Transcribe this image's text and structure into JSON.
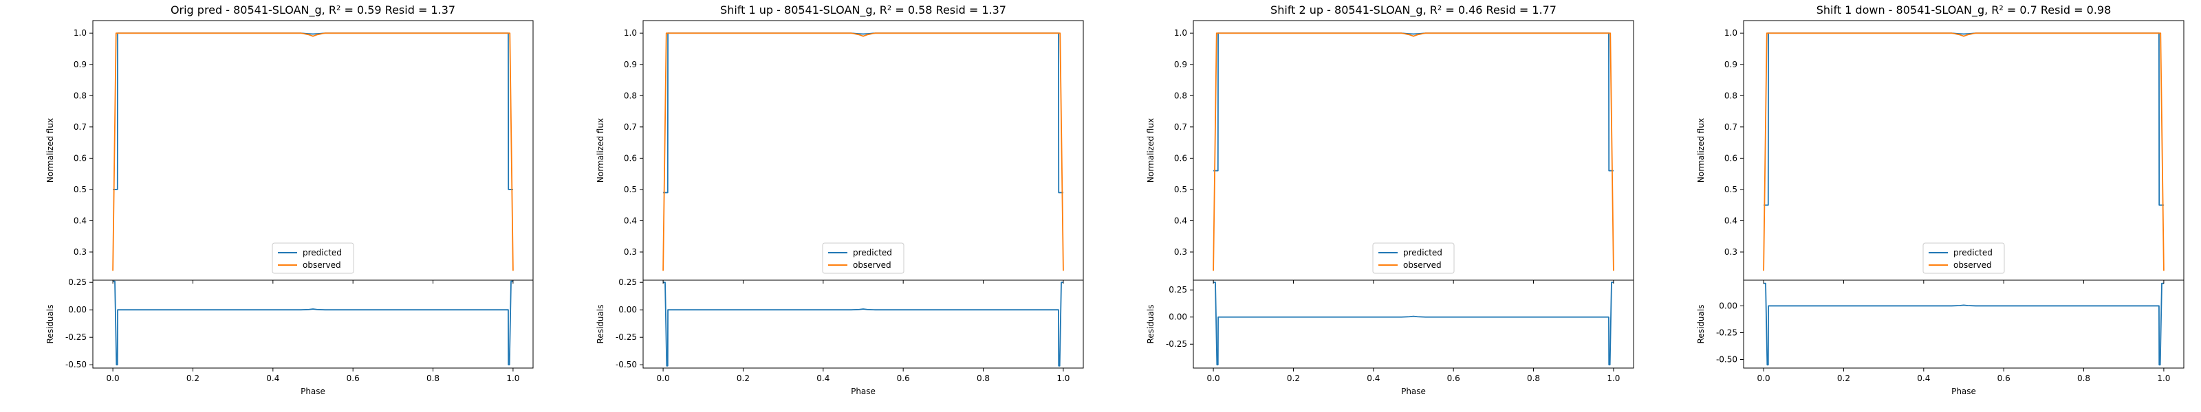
{
  "chart_data": [
    {
      "type": "line",
      "title": "Orig pred - 80541-SLOAN_g, R² = 0.59 Resid = 1.37",
      "top": {
        "ylabel": "Normalized flux",
        "ylim": [
          0.21,
          1.04
        ],
        "yticks": [
          0.3,
          0.4,
          0.5,
          0.6,
          0.7,
          0.8,
          0.9,
          1.0
        ],
        "legend": {
          "placement": "lower center",
          "entries": [
            "predicted",
            "observed"
          ]
        },
        "series": [
          {
            "name": "predicted",
            "color": "#1f77b4",
            "x": [
              0.0,
              0.0005,
              0.005,
              0.0115,
              0.012,
              0.02,
              0.47,
              0.49,
              0.5,
              0.51,
              0.53,
              0.98,
              0.988,
              0.9885,
              0.995,
              0.9995,
              1.0
            ],
            "y": [
              0.5,
              0.5,
              0.5,
              0.5,
              1.0,
              1.0,
              1.0,
              0.998,
              0.997,
              0.998,
              1.0,
              1.0,
              1.0,
              0.5,
              0.5,
              0.5,
              0.5
            ]
          },
          {
            "name": "observed",
            "color": "#ff7f0e",
            "x": [
              0.0,
              0.008,
              0.02,
              0.47,
              0.49,
              0.5,
              0.51,
              0.53,
              0.98,
              0.992,
              1.0
            ],
            "y": [
              0.24,
              1.0,
              1.0,
              1.0,
              0.995,
              0.99,
              0.995,
              1.0,
              1.0,
              1.0,
              0.24
            ]
          }
        ]
      },
      "bottom": {
        "ylabel": "Residuals",
        "ylim": [
          -0.53,
          0.27
        ],
        "yticks": [
          -0.5,
          -0.25,
          0.0,
          0.25
        ],
        "series": [
          {
            "name": "residuals",
            "color": "#1f77b4",
            "x": [
              0.0,
              0.005,
              0.009,
              0.0115,
              0.012,
              0.02,
              0.47,
              0.49,
              0.5,
              0.51,
              0.53,
              0.98,
              0.988,
              0.9885,
              0.991,
              0.995,
              1.0
            ],
            "y": [
              0.26,
              0.26,
              -0.5,
              -0.5,
              0.0,
              0.0,
              0.0,
              0.003,
              0.007,
              0.003,
              0.0,
              0.0,
              0.0,
              -0.5,
              -0.5,
              0.26,
              0.26
            ]
          }
        ]
      },
      "xlabel": "Phase",
      "xlim": [
        -0.05,
        1.05
      ],
      "xticks": [
        0.0,
        0.2,
        0.4,
        0.6,
        0.8,
        1.0
      ]
    },
    {
      "type": "line",
      "title": "Shift 1 up - 80541-SLOAN_g, R² = 0.58 Resid = 1.37",
      "top": {
        "ylabel": "Normalized flux",
        "ylim": [
          0.21,
          1.04
        ],
        "yticks": [
          0.3,
          0.4,
          0.5,
          0.6,
          0.7,
          0.8,
          0.9,
          1.0
        ],
        "legend": {
          "placement": "lower center",
          "entries": [
            "predicted",
            "observed"
          ]
        },
        "series": [
          {
            "name": "predicted",
            "color": "#1f77b4",
            "x": [
              0.0,
              0.0005,
              0.005,
              0.0115,
              0.012,
              0.02,
              0.47,
              0.49,
              0.5,
              0.51,
              0.53,
              0.98,
              0.988,
              0.9885,
              0.995,
              0.9995,
              1.0
            ],
            "y": [
              0.49,
              0.49,
              0.49,
              0.49,
              1.0,
              1.0,
              1.0,
              0.998,
              0.997,
              0.998,
              1.0,
              1.0,
              1.0,
              0.49,
              0.49,
              0.49,
              0.49
            ]
          },
          {
            "name": "observed",
            "color": "#ff7f0e",
            "x": [
              0.0,
              0.008,
              0.02,
              0.47,
              0.49,
              0.5,
              0.51,
              0.53,
              0.98,
              0.992,
              1.0
            ],
            "y": [
              0.24,
              1.0,
              1.0,
              1.0,
              0.995,
              0.99,
              0.995,
              1.0,
              1.0,
              1.0,
              0.24
            ]
          }
        ]
      },
      "bottom": {
        "ylabel": "Residuals",
        "ylim": [
          -0.53,
          0.27
        ],
        "yticks": [
          -0.5,
          -0.25,
          0.0,
          0.25
        ],
        "series": [
          {
            "name": "residuals",
            "color": "#1f77b4",
            "x": [
              0.0,
              0.005,
              0.009,
              0.0115,
              0.012,
              0.02,
              0.47,
              0.49,
              0.5,
              0.51,
              0.53,
              0.98,
              0.988,
              0.9885,
              0.991,
              0.995,
              1.0
            ],
            "y": [
              0.25,
              0.25,
              -0.51,
              -0.51,
              0.0,
              0.0,
              0.0,
              0.003,
              0.007,
              0.003,
              0.0,
              0.0,
              0.0,
              -0.51,
              -0.51,
              0.25,
              0.25
            ]
          }
        ]
      },
      "xlabel": "Phase",
      "xlim": [
        -0.05,
        1.05
      ],
      "xticks": [
        0.0,
        0.2,
        0.4,
        0.6,
        0.8,
        1.0
      ]
    },
    {
      "type": "line",
      "title": "Shift 2 up - 80541-SLOAN_g, R² = 0.46 Resid = 1.77",
      "top": {
        "ylabel": "Normalized flux",
        "ylim": [
          0.21,
          1.04
        ],
        "yticks": [
          0.3,
          0.4,
          0.5,
          0.6,
          0.7,
          0.8,
          0.9,
          1.0
        ],
        "legend": {
          "placement": "lower center",
          "entries": [
            "predicted",
            "observed"
          ]
        },
        "series": [
          {
            "name": "predicted",
            "color": "#1f77b4",
            "x": [
              0.0,
              0.0005,
              0.005,
              0.0115,
              0.012,
              0.02,
              0.47,
              0.49,
              0.5,
              0.51,
              0.53,
              0.98,
              0.988,
              0.9885,
              0.995,
              0.9995,
              1.0
            ],
            "y": [
              0.56,
              0.56,
              0.56,
              0.56,
              1.0,
              1.0,
              1.0,
              0.998,
              0.997,
              0.998,
              1.0,
              1.0,
              1.0,
              0.56,
              0.56,
              0.56,
              0.56
            ]
          },
          {
            "name": "observed",
            "color": "#ff7f0e",
            "x": [
              0.0,
              0.008,
              0.02,
              0.47,
              0.49,
              0.5,
              0.51,
              0.53,
              0.98,
              0.992,
              1.0
            ],
            "y": [
              0.24,
              1.0,
              1.0,
              1.0,
              0.995,
              0.99,
              0.995,
              1.0,
              1.0,
              1.0,
              0.24
            ]
          }
        ]
      },
      "bottom": {
        "ylabel": "Residuals",
        "ylim": [
          -0.47,
          0.34
        ],
        "yticks": [
          -0.25,
          0.0,
          0.25
        ],
        "series": [
          {
            "name": "residuals",
            "color": "#1f77b4",
            "x": [
              0.0,
              0.005,
              0.009,
              0.0115,
              0.012,
              0.02,
              0.47,
              0.49,
              0.5,
              0.51,
              0.53,
              0.98,
              0.988,
              0.9885,
              0.991,
              0.995,
              1.0
            ],
            "y": [
              0.32,
              0.32,
              -0.44,
              -0.44,
              0.0,
              0.0,
              0.0,
              0.003,
              0.007,
              0.003,
              0.0,
              0.0,
              0.0,
              -0.44,
              -0.44,
              0.32,
              0.32
            ]
          }
        ]
      },
      "xlabel": "Phase",
      "xlim": [
        -0.05,
        1.05
      ],
      "xticks": [
        0.0,
        0.2,
        0.4,
        0.6,
        0.8,
        1.0
      ]
    },
    {
      "type": "line",
      "title": "Shift 1 down - 80541-SLOAN_g, R² = 0.7 Resid = 0.98",
      "top": {
        "ylabel": "Normalized flux",
        "ylim": [
          0.21,
          1.04
        ],
        "yticks": [
          0.3,
          0.4,
          0.5,
          0.6,
          0.7,
          0.8,
          0.9,
          1.0
        ],
        "legend": {
          "placement": "lower center",
          "entries": [
            "predicted",
            "observed"
          ]
        },
        "series": [
          {
            "name": "predicted",
            "color": "#1f77b4",
            "x": [
              0.0,
              0.0005,
              0.005,
              0.0115,
              0.012,
              0.02,
              0.47,
              0.49,
              0.5,
              0.51,
              0.53,
              0.98,
              0.988,
              0.9885,
              0.995,
              0.9995,
              1.0
            ],
            "y": [
              0.45,
              0.45,
              0.45,
              0.45,
              1.0,
              1.0,
              1.0,
              0.998,
              0.997,
              0.998,
              1.0,
              1.0,
              1.0,
              0.45,
              0.45,
              0.45,
              0.45
            ]
          },
          {
            "name": "observed",
            "color": "#ff7f0e",
            "x": [
              0.0,
              0.008,
              0.02,
              0.47,
              0.49,
              0.5,
              0.51,
              0.53,
              0.98,
              0.992,
              1.0
            ],
            "y": [
              0.24,
              1.0,
              1.0,
              1.0,
              0.995,
              0.99,
              0.995,
              1.0,
              1.0,
              1.0,
              0.24
            ]
          }
        ]
      },
      "bottom": {
        "ylabel": "Residuals",
        "ylim": [
          -0.58,
          0.24
        ],
        "yticks": [
          -0.5,
          -0.25,
          0.0
        ],
        "series": [
          {
            "name": "residuals",
            "color": "#1f77b4",
            "x": [
              0.0,
              0.005,
              0.009,
              0.0115,
              0.012,
              0.02,
              0.47,
              0.49,
              0.5,
              0.51,
              0.53,
              0.98,
              0.988,
              0.9885,
              0.991,
              0.995,
              1.0
            ],
            "y": [
              0.21,
              0.21,
              -0.55,
              -0.55,
              0.0,
              0.0,
              0.0,
              0.003,
              0.007,
              0.003,
              0.0,
              0.0,
              0.0,
              -0.55,
              -0.55,
              0.21,
              0.21
            ]
          }
        ]
      },
      "xlabel": "Phase",
      "xlim": [
        -0.05,
        1.05
      ],
      "xticks": [
        0.0,
        0.2,
        0.4,
        0.6,
        0.8,
        1.0
      ]
    }
  ]
}
